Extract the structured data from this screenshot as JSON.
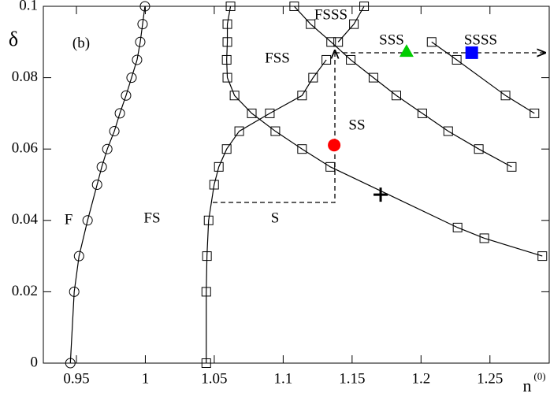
{
  "chart_data": {
    "type": "line",
    "x_label": "n",
    "x_label_superscript": "(0)",
    "y_label": "δ",
    "xlim": [
      0.926,
      1.293
    ],
    "ylim": [
      0,
      0.1
    ],
    "xticks": [
      0.95,
      1,
      1.05,
      1.1,
      1.15,
      1.2,
      1.25
    ],
    "yticks": [
      0,
      0.02,
      0.04,
      0.06,
      0.08,
      0.1
    ],
    "annotations": [
      "(b)",
      "F",
      "FS",
      "S",
      "FSS",
      "FSSS",
      "SSS",
      "SSSS",
      "SS"
    ],
    "series": [
      {
        "marker": "circle",
        "color": "#000000",
        "x": [
          0.9456,
          0.9484,
          0.9519,
          0.9581,
          0.965,
          0.9684,
          0.9724,
          0.9775,
          0.9815,
          0.986,
          0.99,
          0.994,
          0.9963,
          0.998,
          0.9997
        ],
        "values": [
          0,
          0.02,
          0.03,
          0.04,
          0.05,
          0.055,
          0.06,
          0.065,
          0.07,
          0.075,
          0.08,
          0.085,
          0.09,
          0.095,
          0.1
        ]
      },
      {
        "marker": "square",
        "color": "#000000",
        "x": [
          1.0442,
          1.0442,
          1.0447,
          1.0459,
          1.0499,
          1.0533,
          1.059,
          1.0681,
          1.0903,
          1.1137,
          1.1217,
          1.1313
        ],
        "values": [
          0,
          0.02,
          0.03,
          0.04,
          0.05,
          0.055,
          0.06,
          0.065,
          0.07,
          0.075,
          0.08,
          0.085
        ]
      },
      {
        "marker": "square",
        "color": "#000000",
        "x": [
          1.0618,
          1.0595,
          1.0595,
          1.059,
          1.0595,
          1.0647,
          1.0772,
          1.0943,
          1.1137,
          1.1342,
          1.2265,
          1.2459,
          1.288
        ],
        "values": [
          0.1,
          0.095,
          0.09,
          0.085,
          0.08,
          0.075,
          0.07,
          0.065,
          0.06,
          0.055,
          0.038,
          0.035,
          0.03
        ]
      },
      {
        "marker": "square",
        "color": "#000000",
        "x": [
          1.108,
          1.1199,
          1.1348,
          1.149,
          1.1655,
          1.1821,
          1.2009,
          1.2197,
          1.2419,
          1.2658
        ],
        "values": [
          0.1,
          0.095,
          0.09,
          0.085,
          0.08,
          0.075,
          0.07,
          0.065,
          0.06,
          0.055
        ]
      },
      {
        "marker": "square",
        "color": "#000000",
        "x": [
          1.1587,
          1.1513,
          1.1399
        ],
        "values": [
          0.1,
          0.095,
          0.09
        ]
      },
      {
        "marker": "square",
        "color": "#000000",
        "x": [
          1.2077,
          1.2259,
          1.2613,
          1.2823
        ],
        "values": [
          0.09,
          0.085,
          0.075,
          0.07
        ]
      }
    ],
    "points": [
      {
        "shape": "circle",
        "color": "#ff0000",
        "x": 1.137,
        "y": 0.0611
      },
      {
        "shape": "triangle",
        "color": "#00cc00",
        "x": 1.1895,
        "y": 0.0874
      },
      {
        "shape": "square",
        "color": "#0000ff",
        "x": 1.2368,
        "y": 0.087
      },
      {
        "shape": "plus",
        "color": "#000000",
        "x": 1.1707,
        "y": 0.0472
      }
    ]
  }
}
